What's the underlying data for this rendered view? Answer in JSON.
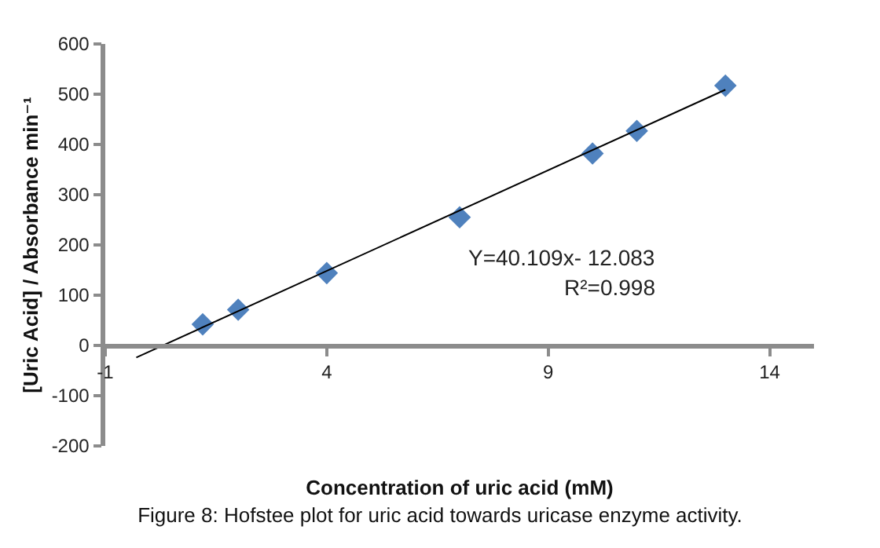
{
  "chart_data": {
    "type": "scatter",
    "title": "Figure 8: Hofstee plot for uric acid towards uricase enzyme activity.",
    "xlabel": "Concentration of uric acid (mM)",
    "ylabel": "[Uric Acid] / Absorbance min⁻¹",
    "annotations": [
      "Y=40.109x- 12.083",
      "R²=0.998"
    ],
    "series": [
      {
        "color": "#4f81bd",
        "x": [
          1.2,
          2,
          4,
          7,
          10,
          11,
          13
        ],
        "values": [
          42,
          71,
          144,
          255,
          382,
          427,
          517
        ]
      },
      {
        "type": "line",
        "marker": "none",
        "color": "#000000",
        "x": [
          -0.3,
          13
        ],
        "values": [
          -24,
          509
        ]
      }
    ],
    "xlim": [
      -1,
      15
    ],
    "xticks": [
      -1,
      4,
      9,
      14
    ],
    "ylim": [
      -200,
      600
    ],
    "yticks": [
      -200,
      -100,
      0,
      100,
      200,
      300,
      400,
      500,
      600
    ],
    "marker": "diamond"
  }
}
